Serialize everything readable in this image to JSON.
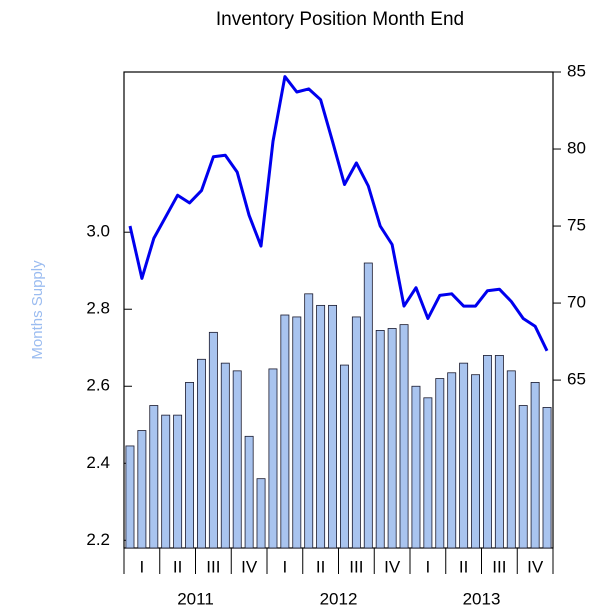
{
  "chart_data": {
    "type": "bar_line",
    "title": "Inventory Position Month End",
    "ylabel": "Months Supply",
    "quarters": [
      "I",
      "II",
      "III",
      "IV",
      "I",
      "II",
      "III",
      "IV",
      "I",
      "II",
      "III",
      "IV"
    ],
    "years": [
      "2011",
      "2012",
      "2013"
    ],
    "series": [
      {
        "type": "bar",
        "color": "#a9c4ef",
        "values": [
          2.445,
          2.485,
          2.55,
          2.525,
          2.525,
          2.61,
          2.67,
          2.74,
          2.66,
          2.64,
          2.47,
          2.36,
          2.645,
          2.785,
          2.78,
          2.84,
          2.81,
          2.81,
          2.655,
          2.78,
          2.92,
          2.745,
          2.75,
          2.76,
          2.6,
          2.57,
          2.62,
          2.635,
          2.66,
          2.63,
          2.68,
          2.68,
          2.64,
          2.55,
          2.61,
          2.545
        ]
      },
      {
        "type": "line",
        "axis": "y2",
        "color": "#0000ee",
        "values": [
          75.0,
          71.6,
          74.2,
          75.6,
          77.0,
          76.5,
          77.3,
          79.5,
          79.6,
          78.5,
          75.7,
          73.7,
          80.5,
          84.7,
          83.7,
          83.9,
          83.2,
          80.5,
          77.7,
          79.1,
          77.6,
          75.0,
          73.8,
          69.8,
          71.0,
          69.0,
          70.5,
          70.6,
          69.8,
          69.8,
          70.8,
          70.9,
          70.1,
          69.0,
          68.5,
          66.9
        ]
      }
    ],
    "ylim": [
      2.18,
      3.416
    ],
    "yticks": [
      2.2,
      2.4,
      2.6,
      2.8,
      {
        "value": 3.0,
        "label": "3.0"
      }
    ],
    "y2lim": [
      54.1,
      85
    ],
    "y2ticks": [
      65,
      70,
      75,
      80,
      85
    ]
  }
}
